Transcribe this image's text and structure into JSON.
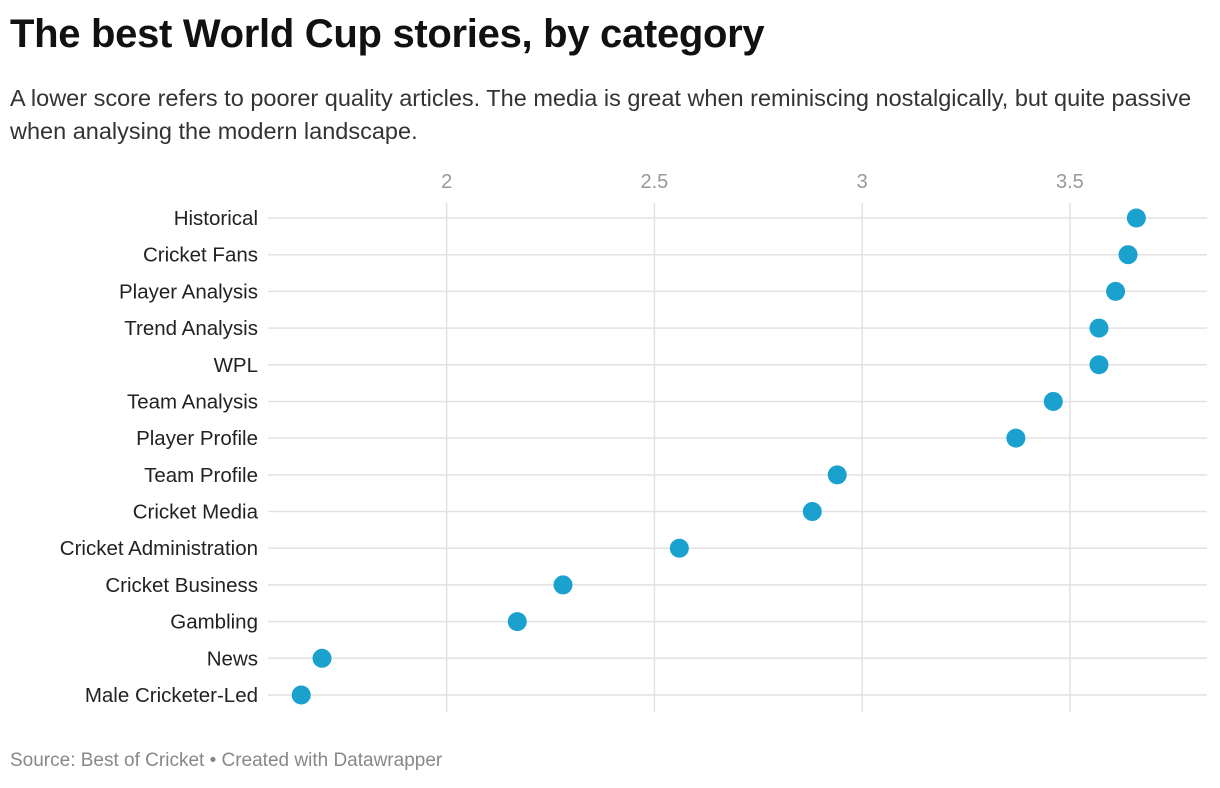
{
  "title": "The best World Cup stories, by category",
  "subtitle": "A lower score refers to poorer quality articles. The media is great when reminiscing nostalgically, but quite passive when analysing the modern landscape.",
  "source": "Source: Best of Cricket • Created with Datawrapper",
  "colors": {
    "dot": "#1aa1ce",
    "grid": "#e2e2e2"
  },
  "chart_data": {
    "type": "scatter",
    "subtype": "dot-plot",
    "title": "The best World Cup stories, by category",
    "xlabel": "",
    "ylabel": "",
    "xlim": [
      1.57,
      3.83
    ],
    "xticks": [
      2,
      2.5,
      3,
      3.5
    ],
    "xtick_labels": [
      "2",
      "2.5",
      "3",
      "3.5"
    ],
    "grid": true,
    "categories": [
      "Historical",
      "Cricket Fans",
      "Player Analysis",
      "Trend Analysis",
      "WPL",
      "Team Analysis",
      "Player Profile",
      "Team Profile",
      "Cricket Media",
      "Cricket Administration",
      "Cricket Business",
      "Gambling",
      "News",
      "Male Cricketer-Led"
    ],
    "values": [
      3.66,
      3.64,
      3.61,
      3.57,
      3.57,
      3.46,
      3.37,
      2.94,
      2.88,
      2.56,
      2.28,
      2.17,
      1.7,
      1.65
    ]
  }
}
